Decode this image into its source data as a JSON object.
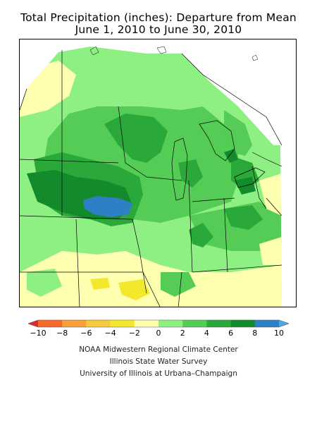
{
  "title": {
    "line1": "Total Precipitation (inches): Departure from Mean",
    "line2": "June 1, 2010 to June 30, 2010"
  },
  "legend": {
    "bins": [
      {
        "from": -12,
        "to": -10,
        "color": "#e0272b"
      },
      {
        "from": -10,
        "to": -8,
        "color": "#f46a2d"
      },
      {
        "from": -8,
        "to": -6,
        "color": "#f7a03a"
      },
      {
        "from": -6,
        "to": -4,
        "color": "#f7c93d"
      },
      {
        "from": -4,
        "to": -2,
        "color": "#f4e82c"
      },
      {
        "from": -2,
        "to": 0,
        "color": "#ffffb0"
      },
      {
        "from": 0,
        "to": 2,
        "color": "#8ef082"
      },
      {
        "from": 2,
        "to": 4,
        "color": "#55cc55"
      },
      {
        "from": 4,
        "to": 6,
        "color": "#2aa83a"
      },
      {
        "from": 6,
        "to": 8,
        "color": "#138a2c"
      },
      {
        "from": 8,
        "to": 10,
        "color": "#2f7fc4"
      },
      {
        "from": 10,
        "to": 12,
        "color": "#4fa9e0"
      }
    ],
    "tick_labels": [
      "−10",
      "−8",
      "−6",
      "−4",
      "−2",
      "0",
      "2",
      "4",
      "6",
      "8",
      "10"
    ]
  },
  "credits": {
    "line1": "NOAA Midwestern Regional Climate Center",
    "line2": "Illinois State Water Survey",
    "line3": "University of Illinois at Urbana–Champaign"
  },
  "colors": {
    "dry_light": "#ffffb0",
    "dry": "#f4e82c",
    "wet_0_2": "#8ef082",
    "wet_2_4": "#55cc55",
    "wet_4_6": "#2aa83a",
    "wet_6_8": "#138a2c",
    "wet_8_10": "#2f7fc4"
  }
}
